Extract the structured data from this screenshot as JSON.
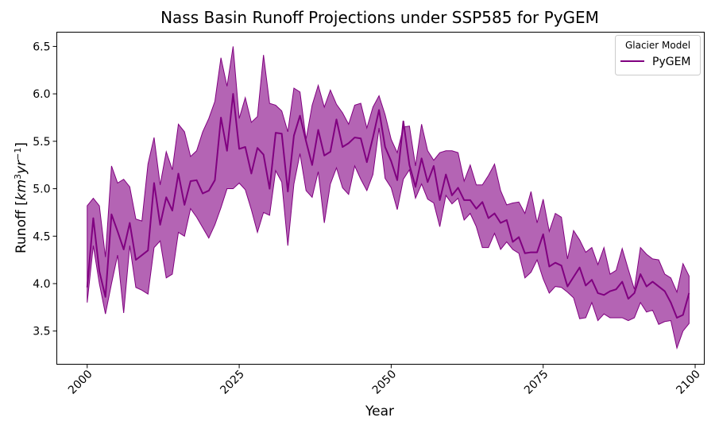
{
  "chart_data": {
    "type": "area",
    "title": "Nass Basin Runoff Projections under SSP585 for PyGEM",
    "xlabel": "Year",
    "ylabel": "Runoff [km³yr⁻¹]",
    "ylabel_base": "Runoff [",
    "ylabel_km": "km",
    "ylabel_km_exp": "3",
    "ylabel_yr": "yr",
    "ylabel_yr_exp": "−1",
    "ylabel_close": "]",
    "xlim": [
      1995,
      2101.5
    ],
    "ylim": [
      3.15,
      6.65
    ],
    "xticks": [
      2000,
      2025,
      2050,
      2075,
      2100
    ],
    "yticks": [
      3.5,
      4.0,
      4.5,
      5.0,
      5.5,
      6.0,
      6.5
    ],
    "ytick_labels": [
      "3.5",
      "4.0",
      "4.5",
      "5.0",
      "5.5",
      "6.0",
      "6.5"
    ],
    "grid": false,
    "legend": {
      "title": "Glacier Model",
      "placement": "top-right",
      "entries": [
        "PyGEM"
      ]
    },
    "colors": {
      "line": "#800080",
      "band": "#b464b4"
    },
    "x": [
      2000,
      2001,
      2002,
      2003,
      2004,
      2005,
      2006,
      2007,
      2008,
      2009,
      2010,
      2011,
      2012,
      2013,
      2014,
      2015,
      2016,
      2017,
      2018,
      2019,
      2020,
      2021,
      2022,
      2023,
      2024,
      2025,
      2026,
      2027,
      2028,
      2029,
      2030,
      2031,
      2032,
      2033,
      2034,
      2035,
      2036,
      2037,
      2038,
      2039,
      2040,
      2041,
      2042,
      2043,
      2044,
      2045,
      2046,
      2047,
      2048,
      2049,
      2050,
      2051,
      2052,
      2053,
      2054,
      2055,
      2056,
      2057,
      2058,
      2059,
      2060,
      2061,
      2062,
      2063,
      2064,
      2065,
      2066,
      2067,
      2068,
      2069,
      2070,
      2071,
      2072,
      2073,
      2074,
      2075,
      2076,
      2077,
      2078,
      2079,
      2080,
      2081,
      2082,
      2083,
      2084,
      2085,
      2086,
      2087,
      2088,
      2089,
      2090,
      2091,
      2092,
      2093,
      2094,
      2095,
      2096,
      2097,
      2098,
      2099
    ],
    "series": [
      {
        "name": "PyGEM",
        "mean": [
          3.96,
          4.69,
          4.13,
          3.86,
          4.73,
          4.55,
          4.36,
          4.64,
          4.25,
          4.3,
          4.35,
          5.06,
          4.62,
          4.91,
          4.77,
          5.16,
          4.83,
          5.08,
          5.09,
          4.95,
          4.98,
          5.09,
          5.75,
          5.4,
          6.0,
          5.42,
          5.44,
          5.16,
          5.43,
          5.36,
          5.0,
          5.59,
          5.58,
          4.97,
          5.56,
          5.77,
          5.5,
          5.25,
          5.62,
          5.35,
          5.39,
          5.73,
          5.44,
          5.48,
          5.54,
          5.53,
          5.28,
          5.54,
          5.83,
          5.44,
          5.29,
          5.09,
          5.71,
          5.25,
          5.02,
          5.32,
          5.07,
          5.24,
          4.88,
          5.15,
          4.93,
          5.01,
          4.88,
          4.88,
          4.79,
          4.86,
          4.69,
          4.74,
          4.64,
          4.67,
          4.44,
          4.49,
          4.32,
          4.33,
          4.33,
          4.52,
          4.18,
          4.22,
          4.19,
          3.97,
          4.07,
          4.17,
          3.98,
          4.04,
          3.9,
          3.88,
          3.92,
          3.94,
          4.02,
          3.84,
          3.9,
          4.1,
          3.97,
          4.02,
          3.97,
          3.92,
          3.8,
          3.64,
          3.67,
          3.9
        ],
        "lower": [
          3.8,
          4.4,
          4.0,
          3.68,
          4.0,
          4.3,
          3.69,
          4.4,
          3.96,
          3.93,
          3.89,
          4.38,
          4.45,
          4.06,
          4.1,
          4.54,
          4.5,
          4.79,
          4.7,
          4.59,
          4.48,
          4.62,
          4.8,
          5.0,
          5.0,
          5.06,
          4.99,
          4.78,
          4.54,
          4.75,
          4.72,
          5.19,
          5.07,
          4.4,
          5.05,
          5.37,
          4.98,
          4.91,
          5.18,
          4.64,
          5.05,
          5.22,
          5.01,
          4.94,
          5.24,
          5.1,
          4.98,
          5.15,
          5.64,
          5.11,
          5.01,
          4.78,
          5.1,
          5.2,
          4.9,
          5.05,
          4.89,
          4.85,
          4.6,
          4.93,
          4.84,
          4.9,
          4.67,
          4.74,
          4.6,
          4.38,
          4.38,
          4.53,
          4.36,
          4.44,
          4.36,
          4.32,
          4.06,
          4.12,
          4.25,
          4.05,
          3.9,
          3.97,
          3.96,
          3.91,
          3.85,
          3.63,
          3.64,
          3.8,
          3.61,
          3.68,
          3.64,
          3.64,
          3.64,
          3.61,
          3.64,
          3.8,
          3.7,
          3.72,
          3.57,
          3.6,
          3.61,
          3.32,
          3.5,
          3.58
        ],
        "upper": [
          4.82,
          4.9,
          4.82,
          4.28,
          5.24,
          5.06,
          5.1,
          5.02,
          4.68,
          4.66,
          5.26,
          5.54,
          5.04,
          5.39,
          5.2,
          5.68,
          5.6,
          5.34,
          5.4,
          5.6,
          5.74,
          5.92,
          6.38,
          6.08,
          6.5,
          5.74,
          5.96,
          5.7,
          5.76,
          6.41,
          5.9,
          5.88,
          5.82,
          5.6,
          6.06,
          6.02,
          5.52,
          5.88,
          6.09,
          5.86,
          6.04,
          5.89,
          5.8,
          5.68,
          5.88,
          5.9,
          5.64,
          5.86,
          5.98,
          5.78,
          5.52,
          5.38,
          5.65,
          5.66,
          5.24,
          5.68,
          5.4,
          5.3,
          5.38,
          5.4,
          5.4,
          5.38,
          5.08,
          5.25,
          5.04,
          5.04,
          5.14,
          5.26,
          4.98,
          4.83,
          4.85,
          4.86,
          4.74,
          4.97,
          4.64,
          4.89,
          4.55,
          4.74,
          4.7,
          4.26,
          4.56,
          4.46,
          4.33,
          4.38,
          4.2,
          4.38,
          4.1,
          4.14,
          4.37,
          4.15,
          3.94,
          4.38,
          4.31,
          4.26,
          4.25,
          4.1,
          4.06,
          3.91,
          4.21,
          4.08
        ]
      }
    ]
  }
}
